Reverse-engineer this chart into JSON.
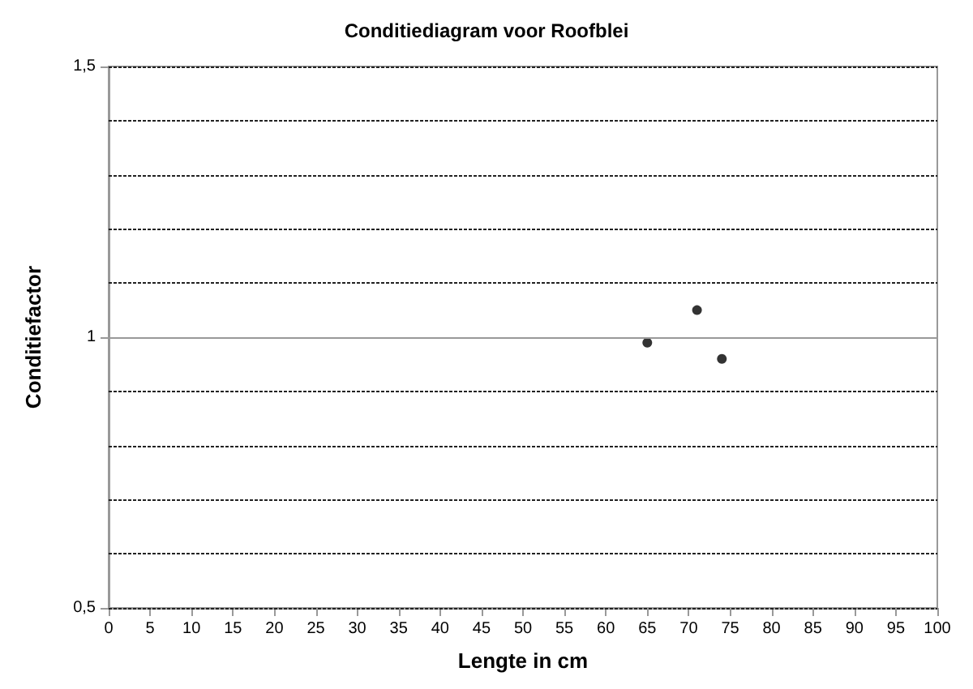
{
  "chart_data": {
    "type": "scatter",
    "title": "Conditiediagram voor Roofblei",
    "xlabel": "Lengte in cm",
    "ylabel": "Conditiefactor",
    "x": [
      65,
      71,
      74
    ],
    "values": [
      0.99,
      1.05,
      0.96
    ],
    "color": "#000000",
    "marker": "circle",
    "xlim": [
      0,
      100
    ],
    "xticks": [
      0,
      5,
      10,
      15,
      20,
      25,
      30,
      35,
      40,
      45,
      50,
      55,
      60,
      65,
      70,
      75,
      80,
      85,
      90,
      95,
      100
    ],
    "ylim": [
      0.5,
      1.5
    ],
    "yticks": [
      {
        "value": 0.5,
        "label": "0,5"
      },
      {
        "value": 0.6,
        "label": null
      },
      {
        "value": 0.7,
        "label": null
      },
      {
        "value": 0.8,
        "label": null
      },
      {
        "value": 0.9,
        "label": null
      },
      {
        "value": 1,
        "label": "1"
      },
      {
        "value": 1.1,
        "label": null
      },
      {
        "value": 1.2,
        "label": null
      },
      {
        "value": 1.3,
        "label": null
      },
      {
        "value": 1.4,
        "label": null
      },
      {
        "value": 1.5,
        "label": "1,5"
      }
    ],
    "grid": "y",
    "ref_lines": [
      {
        "axis": "y",
        "value": 1,
        "color": "#999999",
        "line_style": "solid"
      }
    ]
  }
}
